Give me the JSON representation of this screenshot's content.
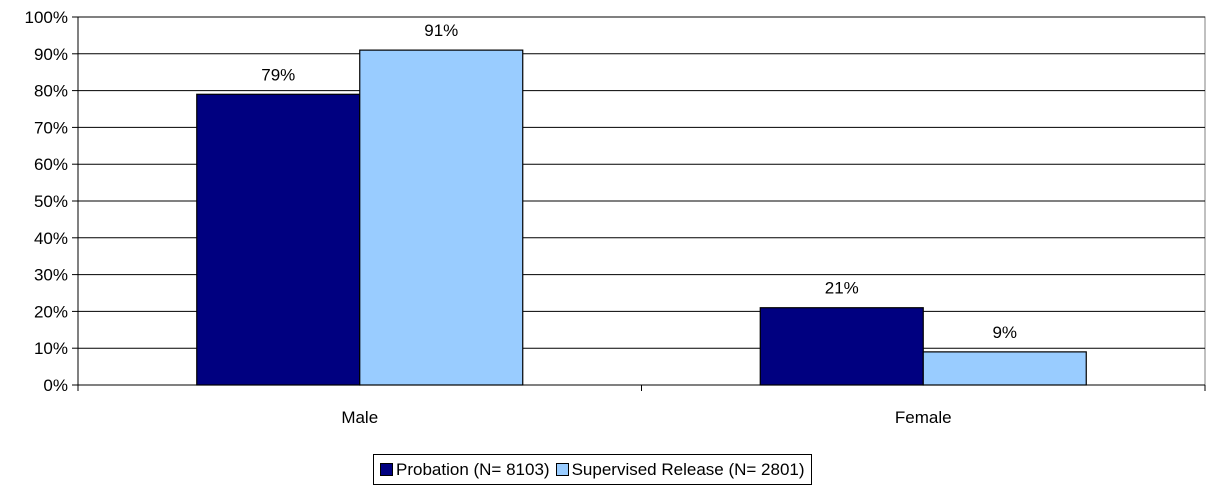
{
  "chart_data": {
    "type": "bar",
    "title": "",
    "xlabel": "",
    "ylabel": "",
    "categories": [
      "Male",
      "Female"
    ],
    "series": [
      {
        "name": "Probation (N= 8103)",
        "values": [
          79,
          21
        ],
        "labels": [
          "79%",
          "21%"
        ],
        "color": "#000080"
      },
      {
        "name": "Supervised Release (N= 2801)",
        "values": [
          91,
          9
        ],
        "labels": [
          "91%",
          "9%"
        ],
        "color": "#99CCFF"
      }
    ],
    "ylim": [
      0,
      100
    ],
    "yticks": [
      0,
      10,
      20,
      30,
      40,
      50,
      60,
      70,
      80,
      90,
      100
    ],
    "ytick_labels": [
      "0%",
      "10%",
      "20%",
      "30%",
      "40%",
      "50%",
      "60%",
      "70%",
      "80%",
      "90%",
      "100%"
    ],
    "grid": true,
    "legend_position": "bottom"
  }
}
